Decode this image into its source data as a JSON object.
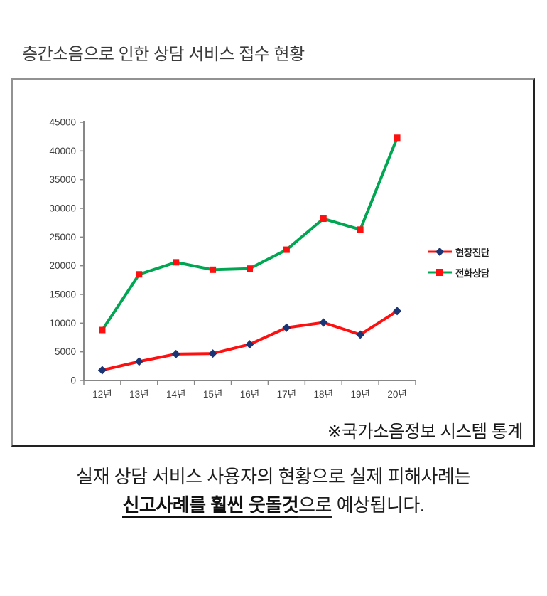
{
  "title": "층간소음으로 인한 상담 서비스 접수 현황",
  "source_note": "※국가소음정보 시스템 통계",
  "caption": {
    "line1": "실재 상담 서비스 사용자의 현황으로 실제 피해사례는",
    "line2_bold_underlined": "신고사례를 훨씬 웃돌것",
    "line2_underlined": "으로",
    "line2_rest": " 예상됩니다."
  },
  "chart_data": {
    "type": "line",
    "title": "",
    "xlabel": "",
    "ylabel": "",
    "categories": [
      "12년",
      "13년",
      "14년",
      "15년",
      "16년",
      "17년",
      "18년",
      "19년",
      "20년"
    ],
    "series": [
      {
        "name": "현장진단",
        "line_color": "#fe1010",
        "marker": "diamond",
        "marker_color": "#1a3474",
        "values": [
          1800,
          3300,
          4600,
          4700,
          6300,
          9200,
          10100,
          8000,
          12100
        ]
      },
      {
        "name": "전화상담",
        "line_color": "#00a651",
        "marker": "square",
        "marker_color": "#fe1010",
        "values": [
          8800,
          18500,
          20600,
          19300,
          19500,
          22800,
          28200,
          26300,
          42300
        ]
      }
    ],
    "ylim": [
      0,
      45000
    ],
    "ytick_step": 5000,
    "grid": false,
    "legend_position": "right",
    "axis_color": "#878787"
  }
}
